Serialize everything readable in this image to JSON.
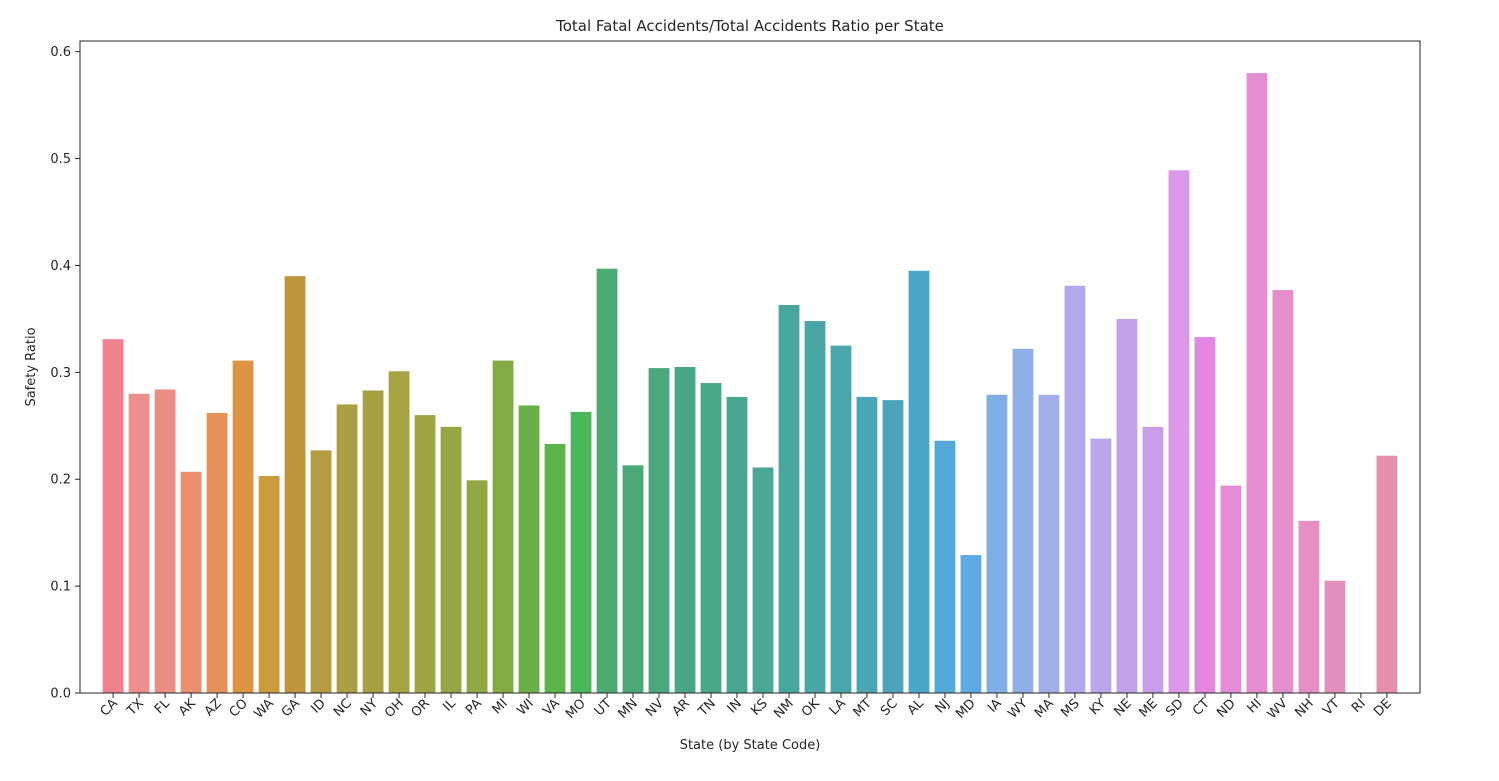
{
  "chart_data": {
    "type": "bar",
    "title": "Total Fatal Accidents/Total Accidents Ratio per State",
    "xlabel": "State (by State Code)",
    "ylabel": "Safety Ratio",
    "ylim": [
      0,
      0.61
    ],
    "yticks": [
      0.0,
      0.1,
      0.2,
      0.3,
      0.4,
      0.5,
      0.6
    ],
    "ytick_labels": [
      "0.0",
      "0.1",
      "0.2",
      "0.3",
      "0.4",
      "0.5",
      "0.6"
    ],
    "grid": false,
    "categories": [
      "CA",
      "TX",
      "FL",
      "AK",
      "AZ",
      "CO",
      "WA",
      "GA",
      "ID",
      "NC",
      "NY",
      "OH",
      "OR",
      "IL",
      "PA",
      "MI",
      "WI",
      "VA",
      "MO",
      "UT",
      "MN",
      "NV",
      "AR",
      "TN",
      "IN",
      "KS",
      "NM",
      "OK",
      "LA",
      "MT",
      "SC",
      "AL",
      "NJ",
      "MD",
      "IA",
      "WY",
      "MA",
      "MS",
      "KY",
      "NE",
      "ME",
      "SD",
      "CT",
      "ND",
      "HI",
      "WV",
      "NH",
      "VT",
      "RI",
      "DE"
    ],
    "values": [
      0.331,
      0.28,
      0.284,
      0.207,
      0.262,
      0.311,
      0.203,
      0.39,
      0.227,
      0.27,
      0.283,
      0.301,
      0.26,
      0.249,
      0.199,
      0.311,
      0.269,
      0.233,
      0.263,
      0.397,
      0.213,
      0.304,
      0.305,
      0.29,
      0.277,
      0.211,
      0.363,
      0.348,
      0.325,
      0.277,
      0.274,
      0.395,
      0.236,
      0.129,
      0.279,
      0.322,
      0.279,
      0.381,
      0.238,
      0.35,
      0.249,
      0.489,
      0.333,
      0.194,
      0.58,
      0.377,
      0.161,
      0.105,
      0.0,
      0.222
    ],
    "colors": [
      "#f0828e",
      "#ea8f8d",
      "#ea8e84",
      "#e8906d",
      "#e6905a",
      "#dd9442",
      "#cb9b3e",
      "#bf963d",
      "#b59c40",
      "#ac9e42",
      "#a89f42",
      "#a6a342",
      "#a2a443",
      "#98a544",
      "#91a744",
      "#82ab44",
      "#6aae47",
      "#5bb447",
      "#4bb65a",
      "#4cab72",
      "#4ba879",
      "#4ba77e",
      "#49a684",
      "#4aa78a",
      "#48a58f",
      "#4aa696",
      "#47a6a0",
      "#49a5a6",
      "#4aa6ad",
      "#4aa5b4",
      "#4aa5bb",
      "#4aa6c8",
      "#52a9d8",
      "#5eabe3",
      "#7eaee5",
      "#90aee7",
      "#a2aee8",
      "#b0a9eb",
      "#baa6ea",
      "#c2a1e9",
      "#c99de8",
      "#da98e8",
      "#e387e3",
      "#e68cd7",
      "#e58dd1",
      "#e48fcb",
      "#e58fc5",
      "#e58fbd",
      "#ffffff",
      "#e58fac"
    ]
  }
}
